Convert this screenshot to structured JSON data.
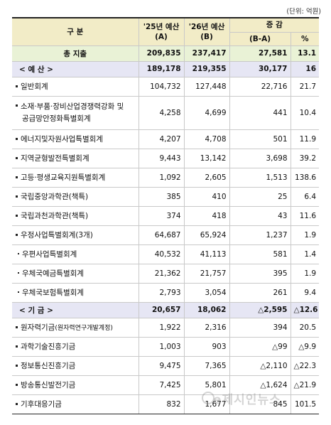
{
  "unit_note": "(단위: 억원)",
  "header": {
    "category": "구  분",
    "col_a": "'25년 예산",
    "col_a_sub": "(A)",
    "col_b": "'26년 예산",
    "col_b_sub": "(B)",
    "change": "증 감",
    "change_amount": "(B-A)",
    "change_pct": "%"
  },
  "rows": [
    {
      "label": "총 지출",
      "a": "209,835",
      "b": "237,417",
      "diff": "27,581",
      "pct": "13.1"
    },
    {
      "label": "< 예 산 >",
      "a": "189,178",
      "b": "219,355",
      "diff": "30,177",
      "pct": "16"
    },
    {
      "label": "일반회계",
      "a": "104,732",
      "b": "127,448",
      "diff": "22,716",
      "pct": "21.7"
    },
    {
      "label": "소재·부품·장비산업경쟁력강화 및",
      "label2": "공급망안정화특별회계",
      "a": "4,258",
      "b": "4,699",
      "diff": "441",
      "pct": "10.4"
    },
    {
      "label": "에너지및자원사업특별회계",
      "a": "4,207",
      "b": "4,708",
      "diff": "501",
      "pct": "11.9"
    },
    {
      "label": "지역균형발전특별회계",
      "a": "9,443",
      "b": "13,142",
      "diff": "3,698",
      "pct": "39.2"
    },
    {
      "label": "고등·평생교육지원특별회계",
      "a": "1,092",
      "b": "2,605",
      "diff": "1,513",
      "pct": "138.6"
    },
    {
      "label": "국립중앙과학관(책특)",
      "a": "385",
      "b": "410",
      "diff": "25",
      "pct": "6.4"
    },
    {
      "label": "국립과천과학관(책특)",
      "a": "374",
      "b": "418",
      "diff": "43",
      "pct": "11.6"
    },
    {
      "label": "우정사업특별회계(3개)",
      "a": "64,687",
      "b": "65,924",
      "diff": "1,237",
      "pct": "1.9"
    },
    {
      "label": "우편사업특별회계",
      "a": "40,532",
      "b": "41,113",
      "diff": "581",
      "pct": "1.4"
    },
    {
      "label": "우체국예금특별회계",
      "a": "21,362",
      "b": "21,757",
      "diff": "395",
      "pct": "1.9"
    },
    {
      "label": "우체국보험특별회계",
      "a": "2,793",
      "b": "3,054",
      "diff": "261",
      "pct": "9.4"
    },
    {
      "label": "< 기 금 >",
      "a": "20,657",
      "b": "18,062",
      "diff": "△2,595",
      "pct": "△12.6"
    },
    {
      "label": "원자력기금",
      "label_small": "(원자력연구개발계정)",
      "a": "1,922",
      "b": "2,316",
      "diff": "394",
      "pct": "20.5"
    },
    {
      "label": "과학기술진흥기금",
      "a": "1,003",
      "b": "903",
      "diff": "△99",
      "pct": "△9.9"
    },
    {
      "label": "정보통신진흥기금",
      "a": "9,475",
      "b": "7,365",
      "diff": "△2,110",
      "pct": "△22.3"
    },
    {
      "label": "방송통신발전기금",
      "a": "7,425",
      "b": "5,801",
      "diff": "△1,624",
      "pct": "△21.9"
    },
    {
      "label": "기후대응기금",
      "a": "832",
      "b": "1,677",
      "diff": "845",
      "pct": "101.5"
    }
  ],
  "watermark": "e제시인뉴스"
}
